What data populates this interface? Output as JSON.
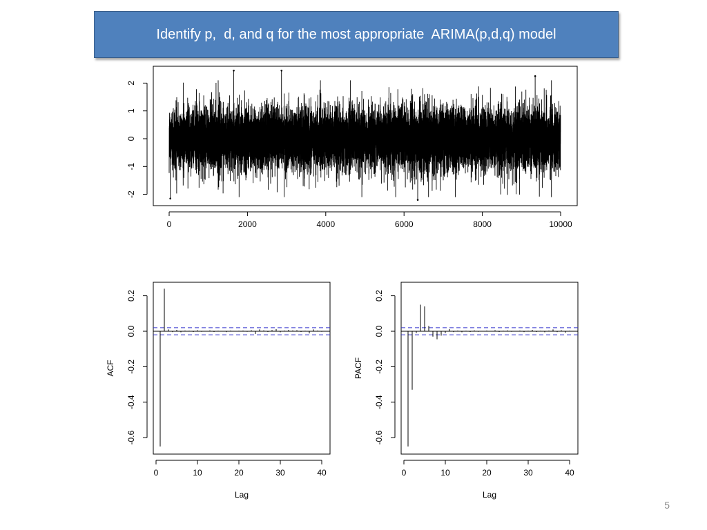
{
  "slide": {
    "title": "Identify p,  d, and q for the most appropriate  ARIMA(p,d,q) model",
    "number": "5"
  },
  "colors": {
    "title_bg": "#4f81bd",
    "title_text": "#ffffff",
    "ci_line": "#3333cc",
    "ink": "#000000"
  },
  "chart_data": [
    {
      "id": "series",
      "type": "line",
      "title": "",
      "xlabel": "",
      "ylabel": "",
      "xlim": [
        0,
        10000
      ],
      "ylim": [
        -2.3,
        2.5
      ],
      "xticks": [
        0,
        2000,
        4000,
        6000,
        8000,
        10000
      ],
      "xtick_labels": [
        "0",
        "2000",
        "4000",
        "6000",
        "8000",
        "10000"
      ],
      "yticks": [
        -2,
        -1,
        0,
        1,
        2
      ],
      "ytick_labels": [
        "-2",
        "-1",
        "0",
        "1",
        "2"
      ],
      "n_points": 10000,
      "mean": 0,
      "sd": 0.6,
      "notable_points": [
        {
          "x": 1650,
          "y": 2.45
        },
        {
          "x": 2870,
          "y": 2.45
        },
        {
          "x": 6350,
          "y": -2.2
        },
        {
          "x": 30,
          "y": -2.15
        },
        {
          "x": 9350,
          "y": 2.25
        }
      ]
    },
    {
      "id": "acf",
      "type": "bar",
      "title": "",
      "xlabel": "Lag",
      "ylabel": "ACF",
      "xlim": [
        0,
        41
      ],
      "ylim": [
        -0.68,
        0.27
      ],
      "xticks": [
        0,
        10,
        20,
        30,
        40
      ],
      "xtick_labels": [
        "0",
        "10",
        "20",
        "30",
        "40"
      ],
      "yticks": [
        -0.6,
        -0.4,
        -0.2,
        0.0,
        0.2
      ],
      "ytick_labels": [
        "-0.6",
        "-0.4",
        "-0.2",
        "0.0",
        "0.2"
      ],
      "confidence_bound": 0.02,
      "lags": [
        1,
        2,
        3,
        4,
        5,
        6,
        7,
        8,
        9,
        10,
        11,
        12,
        13,
        14,
        15,
        16,
        17,
        18,
        19,
        20,
        21,
        22,
        23,
        24,
        25,
        26,
        27,
        28,
        29,
        30,
        31,
        32,
        33,
        34,
        35,
        36,
        37,
        38,
        39,
        40
      ],
      "values": [
        -0.65,
        0.24,
        0.01,
        -0.005,
        0.008,
        -0.006,
        0.004,
        0.003,
        -0.004,
        0.006,
        -0.003,
        0.002,
        0.005,
        -0.004,
        0.003,
        0.002,
        -0.005,
        0.004,
        -0.002,
        0.003,
        0.004,
        -0.003,
        0.006,
        -0.015,
        0.01,
        0.005,
        -0.004,
        0.007,
        0.012,
        -0.006,
        0.004,
        0.008,
        0.005,
        0.006,
        -0.004,
        0.003,
        -0.012,
        0.01,
        0.004,
        -0.003
      ]
    },
    {
      "id": "pacf",
      "type": "bar",
      "title": "",
      "xlabel": "Lag",
      "ylabel": "PACF",
      "xlim": [
        0,
        41
      ],
      "ylim": [
        -0.68,
        0.27
      ],
      "xticks": [
        0,
        10,
        20,
        30,
        40
      ],
      "xtick_labels": [
        "0",
        "10",
        "20",
        "30",
        "40"
      ],
      "yticks": [
        -0.6,
        -0.4,
        -0.2,
        0.0,
        0.2
      ],
      "ytick_labels": [
        "-0.6",
        "-0.4",
        "-0.2",
        "0.0",
        "0.2"
      ],
      "confidence_bound": 0.02,
      "lags": [
        1,
        2,
        3,
        4,
        5,
        6,
        7,
        8,
        9,
        10,
        11,
        12,
        13,
        14,
        15,
        16,
        17,
        18,
        19,
        20,
        21,
        22,
        23,
        24,
        25,
        26,
        27,
        28,
        29,
        30,
        31,
        32,
        33,
        34,
        35,
        36,
        37,
        38,
        39,
        40
      ],
      "values": [
        -0.65,
        -0.33,
        -0.01,
        0.15,
        0.14,
        0.03,
        -0.03,
        -0.045,
        -0.025,
        -0.01,
        0.012,
        -0.005,
        0.004,
        -0.006,
        0.003,
        -0.004,
        0.005,
        -0.003,
        0.002,
        0.004,
        -0.002,
        0.006,
        -0.004,
        0.003,
        0.005,
        -0.003,
        0.002,
        0.004,
        -0.005,
        0.003,
        0.008,
        -0.004,
        0.003,
        -0.006,
        0.004,
        0.01,
        -0.005,
        0.006,
        -0.008,
        0.003
      ]
    }
  ]
}
